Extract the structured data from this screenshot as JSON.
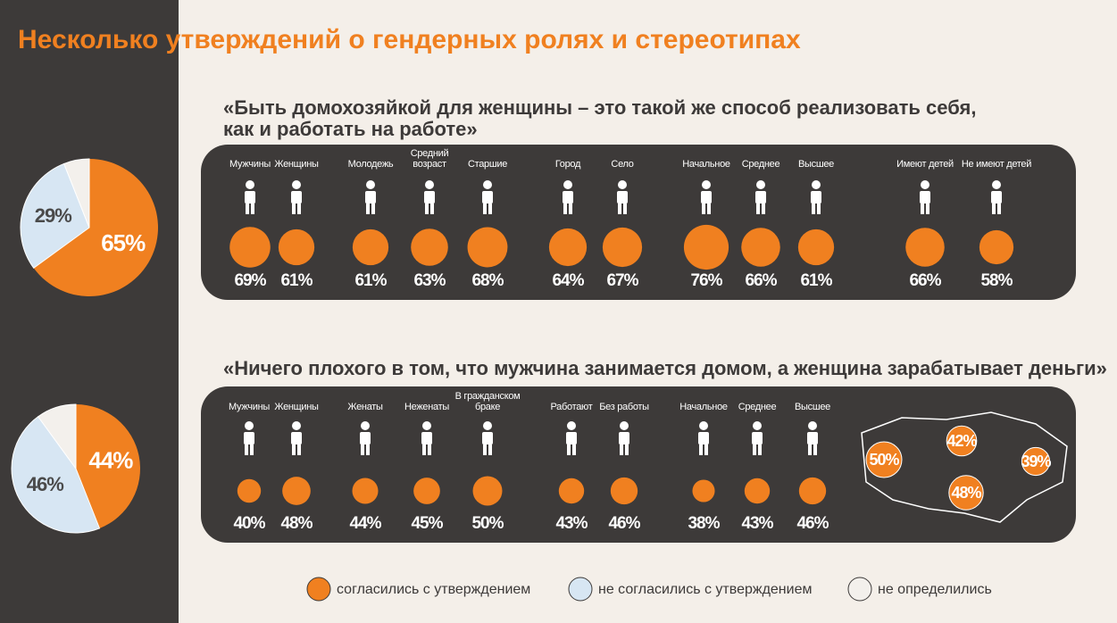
{
  "title": "Несколько утверждений о гендерных ролях и стереотипах",
  "chart_data": [
    {
      "type": "pie",
      "categories": [
        "согласились с утверждением",
        "не согласились с утверждением",
        "не определились"
      ],
      "values": [
        65,
        29,
        6
      ],
      "value_labels": [
        "65%",
        "29%",
        null
      ],
      "colors": [
        "#f08020",
        "#d7e6f3",
        "#f3f0ec"
      ]
    },
    {
      "type": "bubble",
      "title": [
        "«Быть домохозяйкой для женщины – это такой же способ реализовать себя,",
        "как и работать на работе»"
      ],
      "categories": [
        "Мужчины",
        "Женщины",
        "Молодежь",
        "Средний возраст",
        "Старшие",
        "Город",
        "Село",
        "Начальное",
        "Среднее",
        "Высшее",
        "Имеют детей",
        "Не имеют детей"
      ],
      "values": [
        69,
        61,
        61,
        63,
        68,
        64,
        67,
        76,
        66,
        61,
        66,
        58
      ],
      "value_labels": [
        "69%",
        "61%",
        "61%",
        "63%",
        "68%",
        "64%",
        "67%",
        "76%",
        "66%",
        "61%",
        "66%",
        "58%"
      ],
      "color": "#f08020"
    },
    {
      "type": "pie",
      "values": [
        44,
        46,
        10
      ],
      "value_labels": [
        "44%",
        "46%",
        null
      ],
      "colors": [
        "#f08020",
        "#d7e6f3",
        "#f3f0ec"
      ]
    },
    {
      "type": "bubble",
      "title": [
        "«Ничего плохого в том, что мужчина занимается домом, а женщина зарабатывает деньги»"
      ],
      "categories": [
        "Мужчины",
        "Женщины",
        "Женаты",
        "Неженаты",
        "В гражданском браке",
        "Работают",
        "Без работы",
        "Начальное",
        "Среднее",
        "Высшее"
      ],
      "values": [
        40,
        48,
        44,
        45,
        50,
        43,
        46,
        38,
        43,
        46
      ],
      "value_labels": [
        "40%",
        "48%",
        "44%",
        "45%",
        "50%",
        "43%",
        "46%",
        "38%",
        "43%",
        "46%"
      ],
      "color": "#f08020"
    },
    {
      "type": "map",
      "values": [
        50,
        42,
        39,
        48
      ],
      "value_labels": [
        "50%",
        "42%",
        "39%",
        "48%"
      ],
      "color": "#f08020"
    }
  ]
}
